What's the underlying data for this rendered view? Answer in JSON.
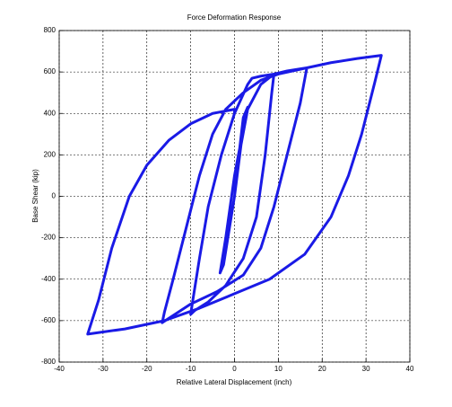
{
  "chart_data": {
    "type": "line",
    "title": "Force Deformation Response",
    "x_label": "Relative Lateral Displacement (inch)",
    "y_label": "Base Shear (kip)",
    "color": "#1a1ae6",
    "grid": true,
    "xlim": [
      -40,
      40
    ],
    "xticks": [
      -40,
      -30,
      -20,
      -10,
      0,
      10,
      20,
      30,
      40
    ],
    "ylim": [
      -800,
      800
    ],
    "yticks": [
      -800,
      -600,
      -400,
      -200,
      0,
      200,
      400,
      600,
      800
    ],
    "x": [
      0,
      1,
      2,
      3,
      2.5,
      0,
      -2,
      -3.3,
      -2.5,
      0,
      1.5,
      3,
      5,
      6,
      9,
      8.5,
      7,
      5,
      2,
      -2,
      -6,
      -9,
      -10,
      -9.5,
      -8,
      -6,
      -3,
      0,
      3,
      4,
      6,
      9,
      12,
      16.5,
      15,
      12,
      9,
      6,
      2,
      -4,
      -10,
      -16.5,
      -16,
      -14,
      -11,
      -8,
      -5,
      -2,
      2,
      6,
      10,
      16.5,
      22,
      28,
      33.5,
      32,
      29,
      26,
      22,
      16,
      8,
      0,
      -8,
      -16,
      -25,
      -33.5,
      -31,
      -28,
      -24,
      -20,
      -15,
      -10,
      -5,
      0,
      0
    ],
    "values": [
      0,
      200,
      380,
      430,
      380,
      100,
      -200,
      -370,
      -330,
      0,
      250,
      420,
      500,
      540,
      590,
      500,
      200,
      -100,
      -300,
      -430,
      -510,
      -550,
      -570,
      -500,
      -300,
      -50,
      200,
      400,
      540,
      570,
      580,
      590,
      605,
      620,
      450,
      200,
      -50,
      -250,
      -380,
      -460,
      -520,
      -610,
      -560,
      -400,
      -150,
      100,
      300,
      420,
      500,
      560,
      590,
      620,
      645,
      665,
      680,
      550,
      300,
      100,
      -100,
      -280,
      -400,
      -470,
      -540,
      -600,
      -640,
      -665,
      -500,
      -250,
      0,
      150,
      270,
      350,
      400,
      420,
      400
    ]
  }
}
